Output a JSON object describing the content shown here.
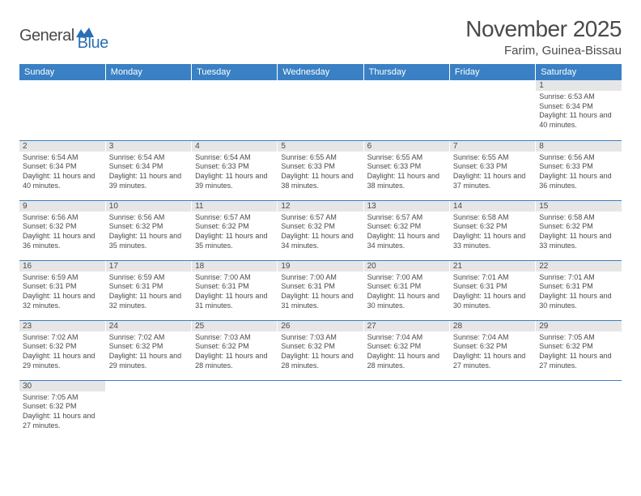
{
  "logo": {
    "general": "General",
    "blue": "Blue"
  },
  "title": "November 2025",
  "location": "Farim, Guinea-Bissau",
  "colors": {
    "header_bg": "#3a80c4",
    "header_text": "#ffffff",
    "daynum_bg": "#e6e6e6",
    "text": "#4a4a4a",
    "border": "#3a80c4",
    "logo_blue": "#2b6fb5"
  },
  "weekdays": [
    "Sunday",
    "Monday",
    "Tuesday",
    "Wednesday",
    "Thursday",
    "Friday",
    "Saturday"
  ],
  "weeks": [
    [
      null,
      null,
      null,
      null,
      null,
      null,
      {
        "n": "1",
        "sr": "Sunrise: 6:53 AM",
        "ss": "Sunset: 6:34 PM",
        "dl": "Daylight: 11 hours and 40 minutes."
      }
    ],
    [
      {
        "n": "2",
        "sr": "Sunrise: 6:54 AM",
        "ss": "Sunset: 6:34 PM",
        "dl": "Daylight: 11 hours and 40 minutes."
      },
      {
        "n": "3",
        "sr": "Sunrise: 6:54 AM",
        "ss": "Sunset: 6:34 PM",
        "dl": "Daylight: 11 hours and 39 minutes."
      },
      {
        "n": "4",
        "sr": "Sunrise: 6:54 AM",
        "ss": "Sunset: 6:33 PM",
        "dl": "Daylight: 11 hours and 39 minutes."
      },
      {
        "n": "5",
        "sr": "Sunrise: 6:55 AM",
        "ss": "Sunset: 6:33 PM",
        "dl": "Daylight: 11 hours and 38 minutes."
      },
      {
        "n": "6",
        "sr": "Sunrise: 6:55 AM",
        "ss": "Sunset: 6:33 PM",
        "dl": "Daylight: 11 hours and 38 minutes."
      },
      {
        "n": "7",
        "sr": "Sunrise: 6:55 AM",
        "ss": "Sunset: 6:33 PM",
        "dl": "Daylight: 11 hours and 37 minutes."
      },
      {
        "n": "8",
        "sr": "Sunrise: 6:56 AM",
        "ss": "Sunset: 6:33 PM",
        "dl": "Daylight: 11 hours and 36 minutes."
      }
    ],
    [
      {
        "n": "9",
        "sr": "Sunrise: 6:56 AM",
        "ss": "Sunset: 6:32 PM",
        "dl": "Daylight: 11 hours and 36 minutes."
      },
      {
        "n": "10",
        "sr": "Sunrise: 6:56 AM",
        "ss": "Sunset: 6:32 PM",
        "dl": "Daylight: 11 hours and 35 minutes."
      },
      {
        "n": "11",
        "sr": "Sunrise: 6:57 AM",
        "ss": "Sunset: 6:32 PM",
        "dl": "Daylight: 11 hours and 35 minutes."
      },
      {
        "n": "12",
        "sr": "Sunrise: 6:57 AM",
        "ss": "Sunset: 6:32 PM",
        "dl": "Daylight: 11 hours and 34 minutes."
      },
      {
        "n": "13",
        "sr": "Sunrise: 6:57 AM",
        "ss": "Sunset: 6:32 PM",
        "dl": "Daylight: 11 hours and 34 minutes."
      },
      {
        "n": "14",
        "sr": "Sunrise: 6:58 AM",
        "ss": "Sunset: 6:32 PM",
        "dl": "Daylight: 11 hours and 33 minutes."
      },
      {
        "n": "15",
        "sr": "Sunrise: 6:58 AM",
        "ss": "Sunset: 6:32 PM",
        "dl": "Daylight: 11 hours and 33 minutes."
      }
    ],
    [
      {
        "n": "16",
        "sr": "Sunrise: 6:59 AM",
        "ss": "Sunset: 6:31 PM",
        "dl": "Daylight: 11 hours and 32 minutes."
      },
      {
        "n": "17",
        "sr": "Sunrise: 6:59 AM",
        "ss": "Sunset: 6:31 PM",
        "dl": "Daylight: 11 hours and 32 minutes."
      },
      {
        "n": "18",
        "sr": "Sunrise: 7:00 AM",
        "ss": "Sunset: 6:31 PM",
        "dl": "Daylight: 11 hours and 31 minutes."
      },
      {
        "n": "19",
        "sr": "Sunrise: 7:00 AM",
        "ss": "Sunset: 6:31 PM",
        "dl": "Daylight: 11 hours and 31 minutes."
      },
      {
        "n": "20",
        "sr": "Sunrise: 7:00 AM",
        "ss": "Sunset: 6:31 PM",
        "dl": "Daylight: 11 hours and 30 minutes."
      },
      {
        "n": "21",
        "sr": "Sunrise: 7:01 AM",
        "ss": "Sunset: 6:31 PM",
        "dl": "Daylight: 11 hours and 30 minutes."
      },
      {
        "n": "22",
        "sr": "Sunrise: 7:01 AM",
        "ss": "Sunset: 6:31 PM",
        "dl": "Daylight: 11 hours and 30 minutes."
      }
    ],
    [
      {
        "n": "23",
        "sr": "Sunrise: 7:02 AM",
        "ss": "Sunset: 6:32 PM",
        "dl": "Daylight: 11 hours and 29 minutes."
      },
      {
        "n": "24",
        "sr": "Sunrise: 7:02 AM",
        "ss": "Sunset: 6:32 PM",
        "dl": "Daylight: 11 hours and 29 minutes."
      },
      {
        "n": "25",
        "sr": "Sunrise: 7:03 AM",
        "ss": "Sunset: 6:32 PM",
        "dl": "Daylight: 11 hours and 28 minutes."
      },
      {
        "n": "26",
        "sr": "Sunrise: 7:03 AM",
        "ss": "Sunset: 6:32 PM",
        "dl": "Daylight: 11 hours and 28 minutes."
      },
      {
        "n": "27",
        "sr": "Sunrise: 7:04 AM",
        "ss": "Sunset: 6:32 PM",
        "dl": "Daylight: 11 hours and 28 minutes."
      },
      {
        "n": "28",
        "sr": "Sunrise: 7:04 AM",
        "ss": "Sunset: 6:32 PM",
        "dl": "Daylight: 11 hours and 27 minutes."
      },
      {
        "n": "29",
        "sr": "Sunrise: 7:05 AM",
        "ss": "Sunset: 6:32 PM",
        "dl": "Daylight: 11 hours and 27 minutes."
      }
    ],
    [
      {
        "n": "30",
        "sr": "Sunrise: 7:05 AM",
        "ss": "Sunset: 6:32 PM",
        "dl": "Daylight: 11 hours and 27 minutes."
      },
      null,
      null,
      null,
      null,
      null,
      null
    ]
  ]
}
